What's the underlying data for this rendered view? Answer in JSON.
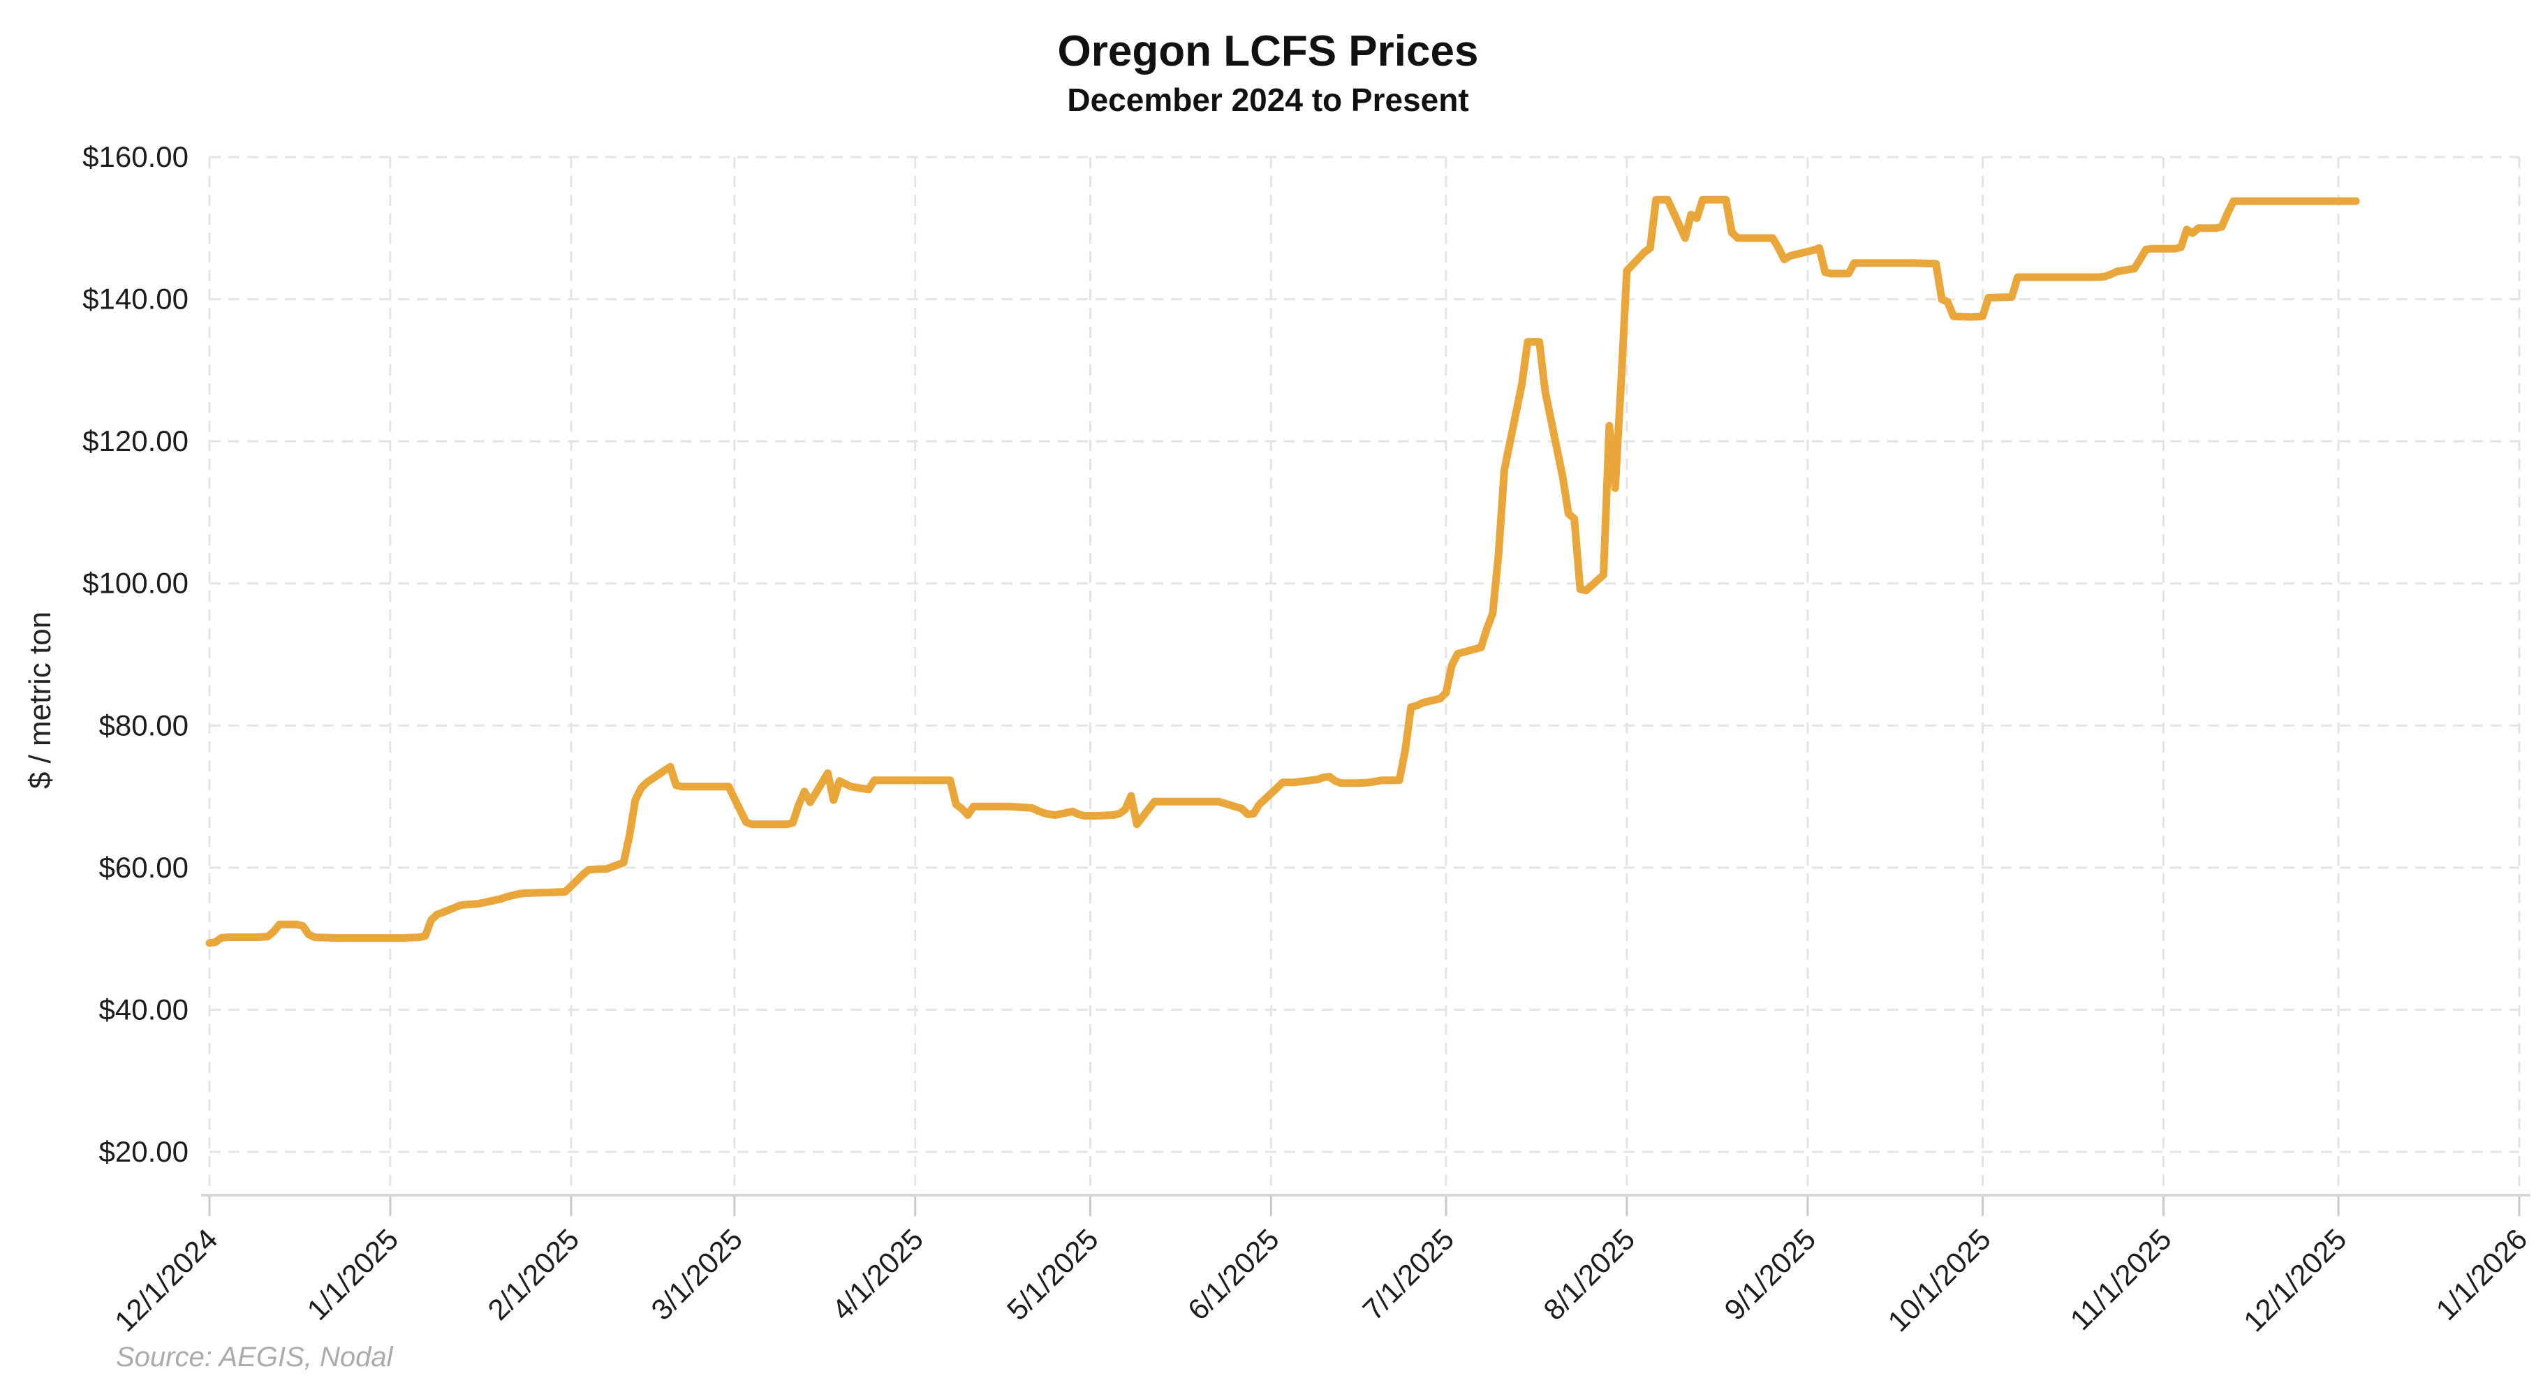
{
  "header": {
    "title": "Oregon LCFS Prices",
    "subtitle": "December 2024 to Present"
  },
  "y_axis_title": "$ / metric ton",
  "source_note": "Source: AEGIS, Nodal",
  "colors": {
    "line": "#E9A63B",
    "grid": "#E4E4E4",
    "axis": "#D6D6D6",
    "tick_mark": "#C9C9C9",
    "tick_text": "#1C1C1C",
    "source_text": "#ABABAB",
    "background": "#FFFFFF"
  },
  "chart_data": {
    "type": "line",
    "title": "Oregon LCFS Prices",
    "subtitle": "December 2024 to Present",
    "xlabel": "",
    "ylabel": "$ / metric ton",
    "legend": "none",
    "grid": "dashed-both-axes",
    "ylim": [
      20,
      160
    ],
    "y_ticks": [
      20,
      40,
      60,
      80,
      100,
      120,
      140,
      160
    ],
    "y_tick_labels": [
      "$20.00",
      "$40.00",
      "$60.00",
      "$80.00",
      "$100.00",
      "$120.00",
      "$140.00",
      "$160.00"
    ],
    "x_tick_labels": [
      "12/1/2024",
      "1/1/2025",
      "2/1/2025",
      "3/1/2025",
      "4/1/2025",
      "5/1/2025",
      "6/1/2025",
      "7/1/2025",
      "8/1/2025",
      "9/1/2025",
      "10/1/2025",
      "11/1/2025",
      "12/1/2025",
      "1/1/2026"
    ],
    "x_range": [
      "12/1/2024",
      "1/1/2026"
    ],
    "series": [
      {
        "name": "Oregon LCFS price ($/metric ton)",
        "points": [
          [
            "12/1/2024",
            49.4
          ],
          [
            "12/2/2024",
            49.5
          ],
          [
            "12/3/2024",
            50.1
          ],
          [
            "12/4/2024",
            50.2
          ],
          [
            "12/6/2024",
            50.2
          ],
          [
            "12/9/2024",
            50.2
          ],
          [
            "12/11/2024",
            50.3
          ],
          [
            "12/12/2024",
            51.0
          ],
          [
            "12/13/2024",
            52.0
          ],
          [
            "12/16/2024",
            52.0
          ],
          [
            "12/17/2024",
            51.8
          ],
          [
            "12/18/2024",
            50.6
          ],
          [
            "12/19/2024",
            50.2
          ],
          [
            "12/23/2024",
            50.1
          ],
          [
            "12/27/2024",
            50.1
          ],
          [
            "12/31/2024",
            50.1
          ],
          [
            "1/3/2025",
            50.1
          ],
          [
            "1/6/2025",
            50.2
          ],
          [
            "1/7/2025",
            50.4
          ],
          [
            "1/8/2025",
            52.6
          ],
          [
            "1/9/2025",
            53.4
          ],
          [
            "1/10/2025",
            53.7
          ],
          [
            "1/13/2025",
            54.7
          ],
          [
            "1/14/2025",
            54.8
          ],
          [
            "1/16/2025",
            54.9
          ],
          [
            "1/20/2025",
            55.6
          ],
          [
            "1/21/2025",
            55.9
          ],
          [
            "1/23/2025",
            56.3
          ],
          [
            "1/24/2025",
            56.4
          ],
          [
            "1/28/2025",
            56.5
          ],
          [
            "1/31/2025",
            56.6
          ],
          [
            "2/3/2025",
            59.0
          ],
          [
            "2/4/2025",
            59.7
          ],
          [
            "2/6/2025",
            59.8
          ],
          [
            "2/7/2025",
            59.8
          ],
          [
            "2/10/2025",
            60.7
          ],
          [
            "2/11/2025",
            64.5
          ],
          [
            "2/12/2025",
            69.5
          ],
          [
            "2/13/2025",
            71.2
          ],
          [
            "2/14/2025",
            72.0
          ],
          [
            "2/18/2025",
            74.2
          ],
          [
            "2/19/2025",
            71.6
          ],
          [
            "2/20/2025",
            71.4
          ],
          [
            "2/24/2025",
            71.4
          ],
          [
            "2/28/2025",
            71.4
          ],
          [
            "3/3/2025",
            66.4
          ],
          [
            "3/4/2025",
            66.1
          ],
          [
            "3/6/2025",
            66.1
          ],
          [
            "3/10/2025",
            66.1
          ],
          [
            "3/11/2025",
            66.3
          ],
          [
            "3/12/2025",
            68.8
          ],
          [
            "3/13/2025",
            70.7
          ],
          [
            "3/14/2025",
            69.2
          ],
          [
            "3/17/2025",
            73.3
          ],
          [
            "3/18/2025",
            69.5
          ],
          [
            "3/19/2025",
            72.2
          ],
          [
            "3/20/2025",
            71.8
          ],
          [
            "3/21/2025",
            71.4
          ],
          [
            "3/24/2025",
            71.0
          ],
          [
            "3/25/2025",
            72.3
          ],
          [
            "3/27/2025",
            72.3
          ],
          [
            "3/31/2025",
            72.3
          ],
          [
            "4/3/2025",
            72.3
          ],
          [
            "4/7/2025",
            72.3
          ],
          [
            "4/8/2025",
            68.9
          ],
          [
            "4/9/2025",
            68.3
          ],
          [
            "4/10/2025",
            67.4
          ],
          [
            "4/11/2025",
            68.6
          ],
          [
            "4/14/2025",
            68.6
          ],
          [
            "4/17/2025",
            68.6
          ],
          [
            "4/21/2025",
            68.4
          ],
          [
            "4/22/2025",
            68.0
          ],
          [
            "4/23/2025",
            67.7
          ],
          [
            "4/24/2025",
            67.5
          ],
          [
            "4/25/2025",
            67.4
          ],
          [
            "4/28/2025",
            67.9
          ],
          [
            "4/29/2025",
            67.5
          ],
          [
            "4/30/2025",
            67.3
          ],
          [
            "5/2/2025",
            67.3
          ],
          [
            "5/5/2025",
            67.4
          ],
          [
            "5/6/2025",
            67.6
          ],
          [
            "5/7/2025",
            68.2
          ],
          [
            "5/8/2025",
            70.1
          ],
          [
            "5/9/2025",
            66.1
          ],
          [
            "5/12/2025",
            69.3
          ],
          [
            "5/15/2025",
            69.3
          ],
          [
            "5/19/2025",
            69.3
          ],
          [
            "5/23/2025",
            69.3
          ],
          [
            "5/27/2025",
            68.3
          ],
          [
            "5/28/2025",
            67.5
          ],
          [
            "5/29/2025",
            67.6
          ],
          [
            "5/30/2025",
            68.9
          ],
          [
            "6/2/2025",
            71.2
          ],
          [
            "6/3/2025",
            72.0
          ],
          [
            "6/5/2025",
            72.0
          ],
          [
            "6/9/2025",
            72.4
          ],
          [
            "6/10/2025",
            72.7
          ],
          [
            "6/11/2025",
            72.8
          ],
          [
            "6/12/2025",
            72.2
          ],
          [
            "6/13/2025",
            71.9
          ],
          [
            "6/16/2025",
            71.9
          ],
          [
            "6/18/2025",
            72.0
          ],
          [
            "6/20/2025",
            72.3
          ],
          [
            "6/23/2025",
            72.3
          ],
          [
            "6/24/2025",
            76.5
          ],
          [
            "6/25/2025",
            82.6
          ],
          [
            "6/26/2025",
            82.8
          ],
          [
            "6/27/2025",
            83.2
          ],
          [
            "6/30/2025",
            83.8
          ],
          [
            "7/1/2025",
            84.6
          ],
          [
            "7/2/2025",
            88.5
          ],
          [
            "7/3/2025",
            90.1
          ],
          [
            "7/7/2025",
            91.0
          ],
          [
            "7/8/2025",
            93.6
          ],
          [
            "7/9/2025",
            95.8
          ],
          [
            "7/10/2025",
            104.0
          ],
          [
            "7/11/2025",
            116.0
          ],
          [
            "7/14/2025",
            128.0
          ],
          [
            "7/15/2025",
            134.0
          ],
          [
            "7/17/2025",
            134.0
          ],
          [
            "7/18/2025",
            127.0
          ],
          [
            "7/21/2025",
            115.0
          ],
          [
            "7/22/2025",
            109.8
          ],
          [
            "7/23/2025",
            109.1
          ],
          [
            "7/24/2025",
            99.2
          ],
          [
            "7/25/2025",
            99.0
          ],
          [
            "7/28/2025",
            101.2
          ],
          [
            "7/29/2025",
            122.2
          ],
          [
            "7/30/2025",
            113.4
          ],
          [
            "7/31/2025",
            128.0
          ],
          [
            "8/1/2025",
            144.0
          ],
          [
            "8/4/2025",
            146.6
          ],
          [
            "8/5/2025",
            147.2
          ],
          [
            "8/6/2025",
            154.0
          ],
          [
            "8/8/2025",
            154.0
          ],
          [
            "8/11/2025",
            148.6
          ],
          [
            "8/12/2025",
            151.9
          ],
          [
            "8/13/2025",
            151.4
          ],
          [
            "8/14/2025",
            154.0
          ],
          [
            "8/18/2025",
            154.0
          ],
          [
            "8/19/2025",
            149.4
          ],
          [
            "8/20/2025",
            148.6
          ],
          [
            "8/22/2025",
            148.6
          ],
          [
            "8/26/2025",
            148.6
          ],
          [
            "8/27/2025",
            147.2
          ],
          [
            "8/28/2025",
            145.6
          ],
          [
            "8/29/2025",
            146.1
          ],
          [
            "9/2/2025",
            146.9
          ],
          [
            "9/3/2025",
            147.2
          ],
          [
            "9/4/2025",
            143.8
          ],
          [
            "9/5/2025",
            143.6
          ],
          [
            "9/8/2025",
            143.6
          ],
          [
            "9/9/2025",
            145.1
          ],
          [
            "9/12/2025",
            145.1
          ],
          [
            "9/16/2025",
            145.1
          ],
          [
            "9/19/2025",
            145.1
          ],
          [
            "9/23/2025",
            145.0
          ],
          [
            "9/24/2025",
            140.0
          ],
          [
            "9/25/2025",
            139.6
          ],
          [
            "9/26/2025",
            137.6
          ],
          [
            "9/29/2025",
            137.5
          ],
          [
            "10/1/2025",
            137.6
          ],
          [
            "10/2/2025",
            140.2
          ],
          [
            "10/6/2025",
            140.3
          ],
          [
            "10/7/2025",
            143.1
          ],
          [
            "10/10/2025",
            143.1
          ],
          [
            "10/14/2025",
            143.1
          ],
          [
            "10/17/2025",
            143.1
          ],
          [
            "10/21/2025",
            143.1
          ],
          [
            "10/22/2025",
            143.2
          ],
          [
            "10/23/2025",
            143.5
          ],
          [
            "10/24/2025",
            143.9
          ],
          [
            "10/27/2025",
            144.3
          ],
          [
            "10/28/2025",
            145.6
          ],
          [
            "10/29/2025",
            147.0
          ],
          [
            "10/30/2025",
            147.1
          ],
          [
            "11/3/2025",
            147.1
          ],
          [
            "11/4/2025",
            147.3
          ],
          [
            "11/5/2025",
            149.8
          ],
          [
            "11/6/2025",
            149.3
          ],
          [
            "11/7/2025",
            150.0
          ],
          [
            "11/10/2025",
            150.0
          ],
          [
            "11/11/2025",
            150.2
          ],
          [
            "11/12/2025",
            152.1
          ],
          [
            "11/13/2025",
            153.8
          ],
          [
            "11/17/2025",
            153.8
          ],
          [
            "11/21/2025",
            153.8
          ],
          [
            "11/25/2025",
            153.8
          ],
          [
            "12/1/2025",
            153.8
          ],
          [
            "12/4/2025",
            153.8
          ]
        ]
      }
    ]
  }
}
